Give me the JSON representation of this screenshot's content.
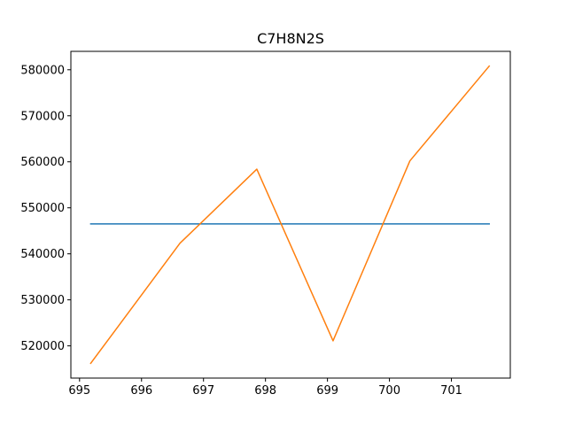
{
  "chart_data": {
    "type": "line",
    "title": "C7H8N2S",
    "xlabel": "",
    "ylabel": "",
    "xlim": [
      694.86,
      701.95
    ],
    "ylim": [
      513000,
      584000
    ],
    "x_ticks": [
      695,
      696,
      697,
      698,
      699,
      700,
      701
    ],
    "y_ticks": [
      520000,
      530000,
      540000,
      550000,
      560000,
      570000,
      580000
    ],
    "grid": false,
    "series": [
      {
        "color": "#1f77b4",
        "x": [
          695.18,
          701.61
        ],
        "y": [
          546500,
          546500
        ]
      },
      {
        "color": "#ff7f0e",
        "x": [
          695.18,
          696.62,
          697.86,
          699.09,
          700.33,
          701.61
        ],
        "y": [
          516200,
          542300,
          558400,
          521100,
          560200,
          580800
        ]
      }
    ]
  }
}
